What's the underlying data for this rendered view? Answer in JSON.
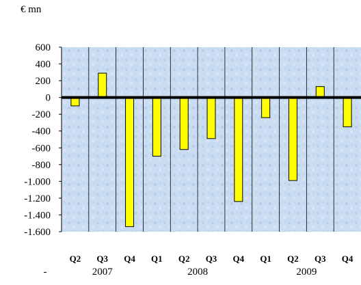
{
  "chart_data": {
    "type": "bar",
    "title": "",
    "unit_label": "€ mn",
    "xlabel": "",
    "ylabel": "",
    "categories": [
      "Q2",
      "Q3",
      "Q4",
      "Q1",
      "Q2",
      "Q3",
      "Q4",
      "Q1",
      "Q2",
      "Q3",
      "Q4"
    ],
    "values": [
      -100,
      290,
      -1540,
      -700,
      -620,
      -490,
      -1240,
      -240,
      -990,
      130,
      -350
    ],
    "years": [
      {
        "label": "2007",
        "from": 0,
        "to": 2
      },
      {
        "label": "2008",
        "from": 3,
        "to": 6
      },
      {
        "label": "2009",
        "from": 7,
        "to": 10
      }
    ],
    "year_row_prefix": "-",
    "ylim": [
      -1600,
      600
    ],
    "yticks": [
      600,
      400,
      200,
      0,
      -200,
      -400,
      -600,
      -800,
      -1000,
      -1200,
      -1400,
      -1600
    ],
    "ytick_labels": [
      "600",
      "400",
      "200",
      "0",
      "-200",
      "-400",
      "-600",
      "-800",
      "-1.000",
      "-1.200",
      "-1.400",
      "-1.600"
    ],
    "bar_color": "#ffff00",
    "bar_edge_color": "#000000",
    "plot_background": "#c8daf0",
    "grid": false,
    "legend": "none"
  }
}
